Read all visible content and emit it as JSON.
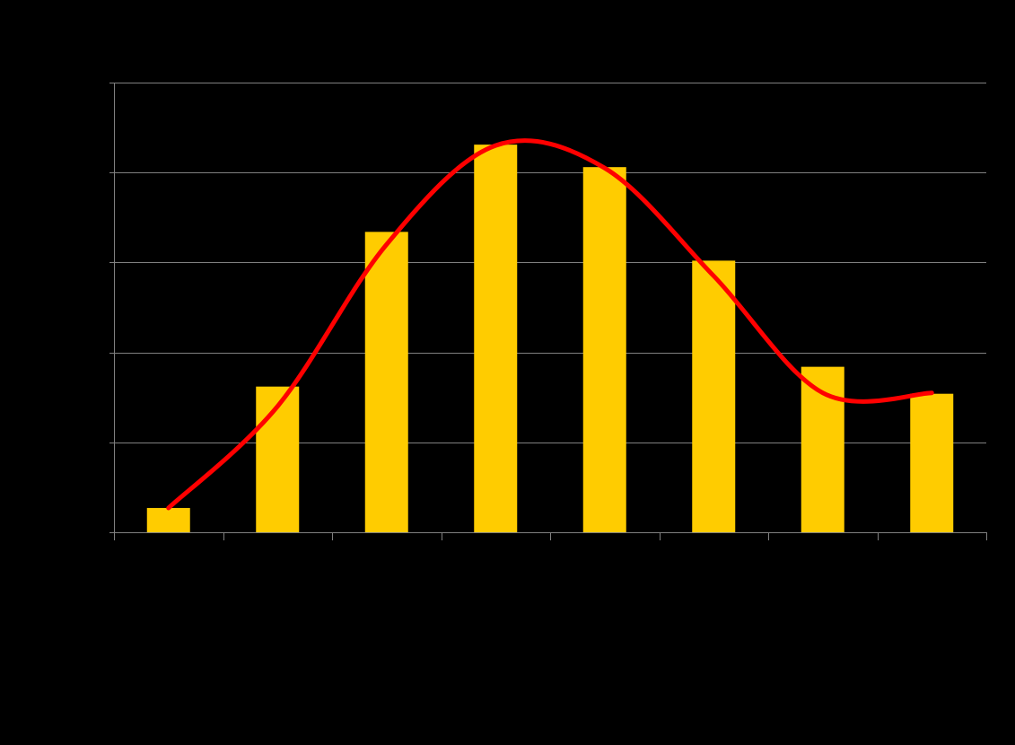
{
  "chart_data": {
    "type": "bar",
    "categories": [
      "",
      "",
      "",
      "",
      "",
      "",
      "",
      ""
    ],
    "values": [
      0.27,
      1.62,
      3.34,
      4.31,
      4.06,
      3.02,
      1.84,
      1.54
    ],
    "ylim": [
      0,
      5
    ],
    "grid": true,
    "yticks": [
      0,
      1,
      2,
      3,
      4,
      5
    ],
    "trendline": {
      "type": "smoothed",
      "values": [
        0.27,
        1.4,
        3.2,
        4.3,
        4.05,
        2.85,
        1.55,
        1.55
      ]
    },
    "title": "",
    "xlabel": "",
    "ylabel": ""
  },
  "colors": {
    "background": "#000000",
    "bar": "#FFCC00",
    "trendline": "#FF0000",
    "grid": "#808080",
    "axis": "#808080"
  }
}
